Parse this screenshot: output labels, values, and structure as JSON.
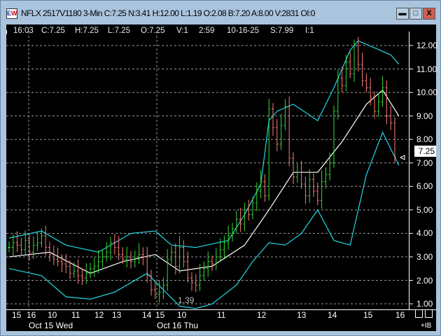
{
  "window": {
    "title": "NFLX 2517V1180 3-Min C:7.25 N:3.41 H:12.00 L:1.19 O:2.08 B:7.20 A:8.00 V:2831 OI:0",
    "icon_text": "EW",
    "minimize": "▬",
    "maximize": "□",
    "close": "X"
  },
  "infobar": [
    "16:03",
    "C:7.25",
    "H:7.25",
    "L:7.25",
    "O:7.25",
    "V:1",
    "2:59",
    "10-16-25",
    "S:7.99",
    "I:1"
  ],
  "colors": {
    "up": "#33dd33",
    "down": "#ff7b7b",
    "band": "#22d8e6",
    "middle": "#ffffff",
    "grid": "#9a9a9a"
  },
  "chart_data": {
    "type": "bar",
    "subtype": "ohlc-with-bollinger-bands",
    "y_axis": {
      "ticks": [
        "12.00",
        "11.00",
        "10.00",
        "9.00",
        "8.00",
        "7.00",
        "6.00",
        "5.00",
        "4.00",
        "3.00",
        "2.00",
        "1.00"
      ],
      "range": [
        0.7,
        12.9
      ]
    },
    "last_price_label": "7.25",
    "low_annotation": "1.39",
    "x_ticks": [
      "15",
      "16",
      "10",
      "11",
      "12",
      "13",
      "14",
      "15",
      "10",
      "11",
      "12",
      "13",
      "14",
      "15",
      "16"
    ],
    "date_labels": [
      "Oct 15 Wed",
      "Oct 16 Thu"
    ],
    "closes": [
      3.4,
      3.6,
      3.5,
      3.3,
      3.7,
      3.2,
      3.5,
      3.6,
      3.9,
      3.4,
      3.1,
      2.9,
      2.8,
      2.7,
      2.6,
      2.3,
      2.4,
      2.2,
      2.1,
      2.3,
      2.5,
      2.6,
      2.8,
      3.0,
      3.2,
      3.6,
      3.4,
      3.1,
      2.9,
      3.0,
      2.8,
      2.9,
      3.1,
      3.0,
      2.2,
      1.6,
      1.4,
      1.5,
      1.8,
      2.9,
      3.2,
      2.6,
      3.4,
      2.8,
      2.1,
      1.9,
      1.8,
      2.2,
      2.5,
      2.8,
      2.7,
      3.0,
      3.3,
      3.6,
      3.9,
      4.2,
      4.6,
      4.4,
      5.0,
      4.8,
      5.3,
      5.8,
      6.2,
      5.6,
      9.3,
      8.5,
      7.8,
      8.6,
      9.4,
      7.2,
      6.4,
      6.6,
      6.1,
      5.6,
      6.3,
      5.8,
      5.4,
      6.2,
      6.5,
      7.0,
      9.2,
      10.6,
      10.3,
      11.3,
      10.8,
      12.0,
      11.2,
      10.5,
      10.2,
      9.8,
      9.2,
      9.6,
      10.2,
      9.0,
      8.7,
      7.25
    ],
    "upper_band": [
      [
        0,
        3.8
      ],
      [
        8,
        4.1
      ],
      [
        14,
        3.5
      ],
      [
        22,
        3.2
      ],
      [
        30,
        4.0
      ],
      [
        36,
        4.1
      ],
      [
        40,
        3.5
      ],
      [
        46,
        3.4
      ],
      [
        54,
        3.7
      ],
      [
        58,
        4.8
      ],
      [
        62,
        6.1
      ],
      [
        64,
        8.8
      ],
      [
        66,
        9.2
      ],
      [
        70,
        9.5
      ],
      [
        76,
        8.8
      ],
      [
        80,
        10.2
      ],
      [
        84,
        11.8
      ],
      [
        86,
        12.2
      ],
      [
        90,
        11.9
      ],
      [
        94,
        11.6
      ],
      [
        96,
        11.2
      ]
    ],
    "middle_band": [
      [
        0,
        3.0
      ],
      [
        10,
        3.2
      ],
      [
        20,
        2.3
      ],
      [
        28,
        2.8
      ],
      [
        36,
        3.1
      ],
      [
        42,
        2.4
      ],
      [
        50,
        2.6
      ],
      [
        58,
        3.5
      ],
      [
        64,
        5.0
      ],
      [
        70,
        6.6
      ],
      [
        76,
        6.6
      ],
      [
        82,
        7.9
      ],
      [
        88,
        9.5
      ],
      [
        92,
        10.1
      ],
      [
        96,
        9.0
      ]
    ],
    "lower_band": [
      [
        0,
        2.5
      ],
      [
        8,
        2.2
      ],
      [
        14,
        1.3
      ],
      [
        20,
        1.2
      ],
      [
        26,
        1.5
      ],
      [
        34,
        2.3
      ],
      [
        38,
        1.6
      ],
      [
        42,
        0.9
      ],
      [
        46,
        0.8
      ],
      [
        50,
        1.0
      ],
      [
        56,
        1.8
      ],
      [
        60,
        2.8
      ],
      [
        64,
        3.6
      ],
      [
        68,
        3.5
      ],
      [
        72,
        4.0
      ],
      [
        76,
        5.0
      ],
      [
        80,
        3.7
      ],
      [
        84,
        3.5
      ],
      [
        88,
        6.5
      ],
      [
        92,
        8.3
      ],
      [
        96,
        6.9
      ]
    ]
  },
  "corner": "+IB"
}
